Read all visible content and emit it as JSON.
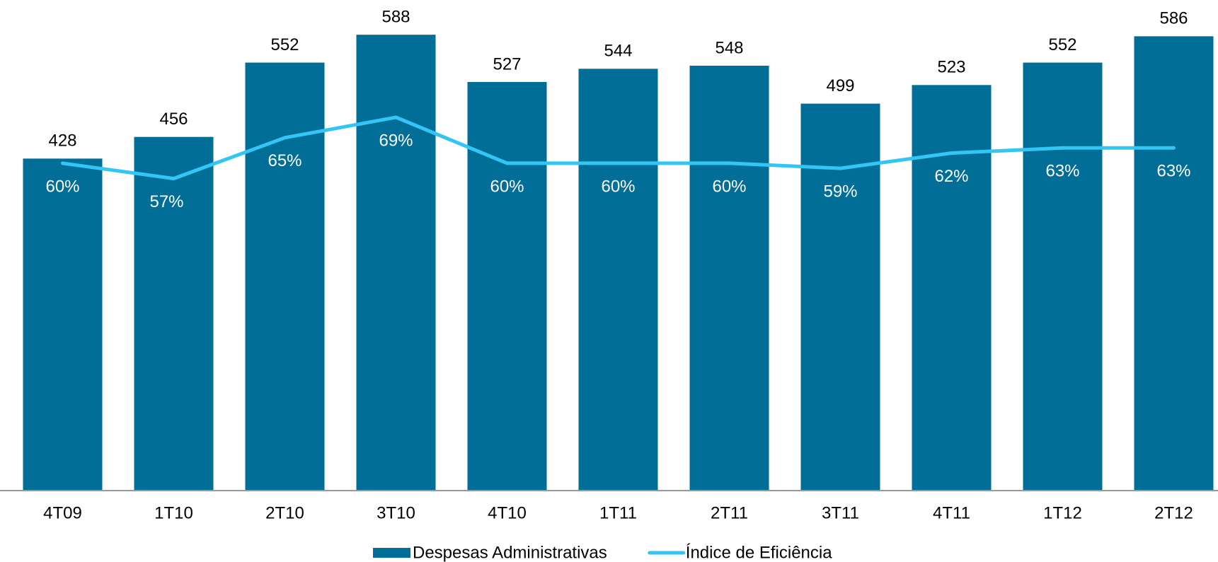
{
  "chart_data": {
    "type": "bar",
    "categories": [
      "4T09",
      "1T10",
      "2T10",
      "3T10",
      "4T10",
      "1T11",
      "2T11",
      "3T11",
      "4T11",
      "1T12",
      "2T12"
    ],
    "series": [
      {
        "name": "Despesas Administrativas",
        "type": "bar",
        "color": "#006e96",
        "values": [
          428,
          456,
          552,
          588,
          527,
          544,
          548,
          499,
          523,
          552,
          586
        ]
      },
      {
        "name": "Índice de Eficiência",
        "type": "line",
        "axis": "y2",
        "color": "#33c5f3",
        "values": [
          60,
          57,
          65,
          69,
          60,
          60,
          60,
          59,
          62,
          63,
          63
        ],
        "value_labels": [
          "60%",
          "57%",
          "65%",
          "69%",
          "60%",
          "60%",
          "60%",
          "59%",
          "62%",
          "63%",
          "63%"
        ]
      }
    ],
    "ylim": [
      0,
      600
    ],
    "y2lim": [
      -4,
      87
    ],
    "legend": "bottom"
  }
}
